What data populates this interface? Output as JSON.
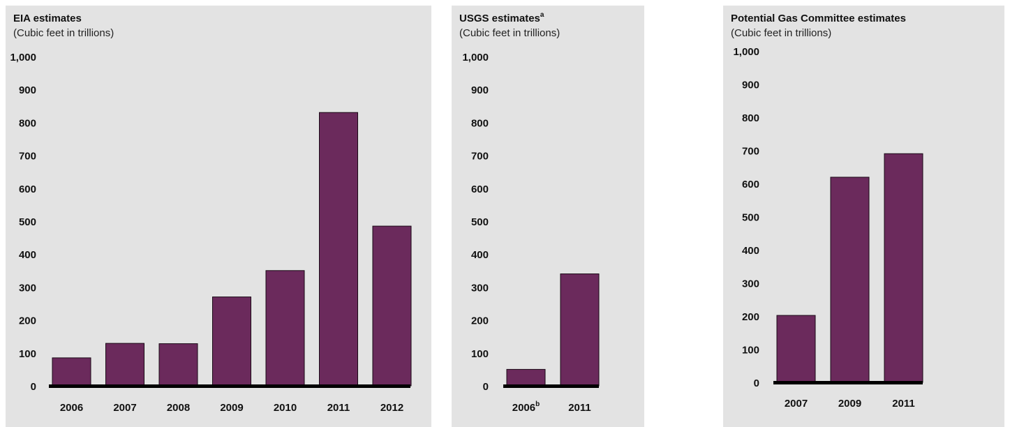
{
  "colors": {
    "bar": "#6b2a5c",
    "bar_stroke": "#1a0a16",
    "baseline": "#000000",
    "panel_bg": "#e3e3e3"
  },
  "chart_data": [
    {
      "type": "bar",
      "title": "EIA estimates",
      "title_sup": "",
      "subtitle": "(Cubic feet in trillions)",
      "categories": [
        "2006",
        "2007",
        "2008",
        "2009",
        "2010",
        "2011",
        "2012"
      ],
      "category_sups": [
        "",
        "",
        "",
        "",
        "",
        "",
        ""
      ],
      "values": [
        85,
        129,
        128,
        270,
        350,
        830,
        485
      ],
      "yticks": [
        "0",
        "100",
        "200",
        "300",
        "400",
        "500",
        "600",
        "700",
        "800",
        "900",
        "1,000"
      ],
      "ylim": [
        0,
        1000
      ],
      "grid": false
    },
    {
      "type": "bar",
      "title": "USGS estimates",
      "title_sup": "a",
      "subtitle": "(Cubic feet in trillions)",
      "categories": [
        "2006",
        "2011"
      ],
      "category_sups": [
        "b",
        ""
      ],
      "values": [
        50,
        340
      ],
      "yticks": [
        "0",
        "100",
        "200",
        "300",
        "400",
        "500",
        "600",
        "700",
        "800",
        "900",
        "1,000"
      ],
      "ylim": [
        0,
        1000
      ],
      "grid": false
    },
    {
      "type": "bar",
      "title": "Potential Gas Committee estimates",
      "title_sup": "",
      "subtitle": "(Cubic feet in trillions)",
      "categories": [
        "2007",
        "2009",
        "2011"
      ],
      "category_sups": [
        "",
        "",
        ""
      ],
      "values": [
        202,
        619,
        690
      ],
      "yticks": [
        "0",
        "100",
        "200",
        "300",
        "400",
        "500",
        "600",
        "700",
        "800",
        "900",
        "1,000"
      ],
      "ylim": [
        0,
        1000
      ],
      "grid": false
    }
  ]
}
